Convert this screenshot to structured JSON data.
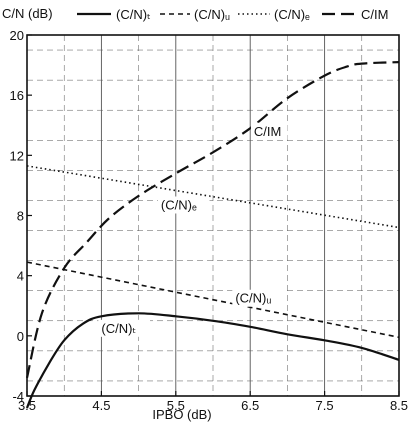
{
  "chart_data": {
    "type": "line",
    "ylabel": "C/N (dB)",
    "xlabel": "IPBO (dB)",
    "xlim": [
      3.5,
      8.5
    ],
    "ylim": [
      -4,
      20
    ],
    "x_ticks": [
      3.5,
      4.5,
      5.5,
      6.5,
      7.5,
      8.5
    ],
    "x_tick_labels": [
      "3.5",
      "4.5",
      "5.5",
      "6.5",
      "7.5",
      "8.5"
    ],
    "y_ticks": [
      -4,
      0,
      4,
      8,
      12,
      16,
      20
    ],
    "y_tick_labels": [
      "-4",
      "0",
      "4",
      "8",
      "12",
      "16",
      "20"
    ],
    "grid": true,
    "legend_position": "top",
    "series": [
      {
        "name": "(C/N)ₜ",
        "style": "solid",
        "x": [
          3.5,
          3.6,
          3.8,
          4.0,
          4.25,
          4.5,
          5.0,
          5.5,
          6.0,
          6.5,
          7.0,
          7.5,
          8.0,
          8.5
        ],
        "y": [
          -4.8,
          -3.6,
          -1.8,
          -0.3,
          0.8,
          1.3,
          1.5,
          1.3,
          1.0,
          0.6,
          0.1,
          -0.3,
          -0.8,
          -1.6
        ]
      },
      {
        "name": "(C/N)ᵤ",
        "style": "dashed-short",
        "x": [
          3.5,
          8.5
        ],
        "y": [
          4.9,
          -0.1
        ]
      },
      {
        "name": "(C/N)ₑ",
        "style": "dotted",
        "x": [
          3.5,
          8.5
        ],
        "y": [
          11.3,
          7.2
        ]
      },
      {
        "name": "C/IM",
        "style": "dashed-long",
        "x": [
          3.5,
          3.7,
          4.0,
          4.3,
          4.6,
          5.0,
          5.5,
          6.0,
          6.5,
          7.0,
          7.5,
          7.8,
          8.0,
          8.5
        ],
        "y": [
          -2.8,
          1.5,
          4.5,
          6.2,
          7.8,
          9.3,
          10.8,
          12.2,
          13.8,
          15.8,
          17.3,
          17.9,
          18.1,
          18.2
        ]
      }
    ],
    "annotations": [
      {
        "text": "(C/N)ₜ",
        "x": 4.5,
        "y": 0.2
      },
      {
        "text": "(C/N)ᵤ",
        "x": 6.3,
        "y": 2.2
      },
      {
        "text": "(C/N)ₑ",
        "x": 5.3,
        "y": 8.4
      },
      {
        "text": "C/IM",
        "x": 6.55,
        "y": 13.3
      }
    ]
  }
}
